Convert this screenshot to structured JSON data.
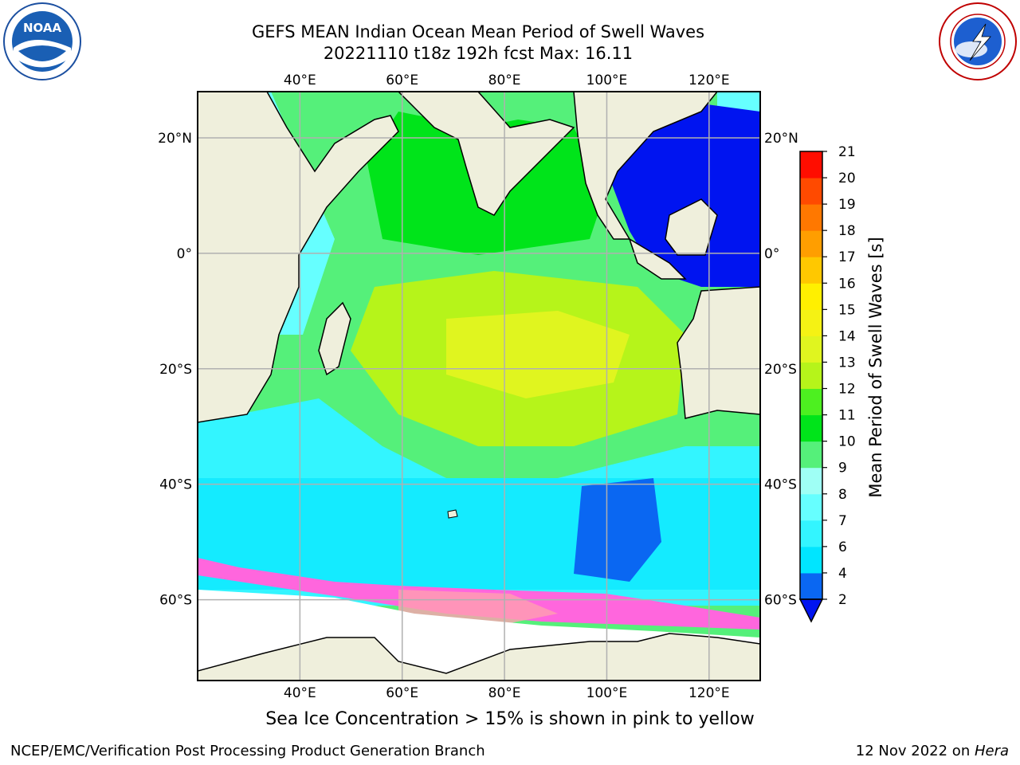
{
  "title_line1": "GEFS MEAN Indian Ocean Mean Period of Swell Waves",
  "title_line2": "20221110 t18z 192h fcst   Max: 16.11",
  "map": {
    "lon_ticks": [
      "40°E",
      "60°E",
      "80°E",
      "100°E",
      "120°E"
    ],
    "lon_values": [
      40,
      60,
      80,
      100,
      120
    ],
    "lat_ticks": [
      "20°N",
      "0°",
      "20°S",
      "40°S",
      "60°S"
    ],
    "lat_values": [
      20,
      0,
      -20,
      -40,
      -60
    ],
    "extent": {
      "lon_min": 20,
      "lon_max": 130,
      "lat_min": -74,
      "lat_max": 28
    },
    "regions": [
      {
        "name": "land",
        "color": "#efefdc"
      },
      {
        "name": "sea ice",
        "color": "#ffffff"
      }
    ]
  },
  "colorbar": {
    "label": "Mean Period of Swell Waves [s]",
    "ticks": [
      "2",
      "4",
      "6",
      "7",
      "8",
      "9",
      "10",
      "11",
      "12",
      "13",
      "14",
      "15",
      "16",
      "17",
      "18",
      "19",
      "20",
      "21"
    ],
    "levels": [
      2,
      4,
      6,
      7,
      8,
      9,
      10,
      11,
      12,
      13,
      14,
      15,
      16,
      17,
      18,
      19,
      20,
      21
    ],
    "colors": [
      "#0a67f2",
      "#00e5ff",
      "#33f5ff",
      "#66ffff",
      "#9ffff5",
      "#55f07a",
      "#00e41a",
      "#4df020",
      "#b6f41a",
      "#e0f51f",
      "#f5f214",
      "#fff000",
      "#ffc800",
      "#ff9e00",
      "#ff7800",
      "#ff4a00",
      "#ff0d00"
    ],
    "under_color": "#0014f0"
  },
  "caption": "Sea Ice Concentration > 15% is shown in pink to yellow",
  "footer_left": "NCEP/EMC/Verification Post Processing Product Generation Branch",
  "footer_date": "12 Nov 2022 on ",
  "footer_machine": "Hera",
  "logos": {
    "left": "noaa-logo",
    "left_text": "NOAA",
    "right": "nws-logo"
  }
}
